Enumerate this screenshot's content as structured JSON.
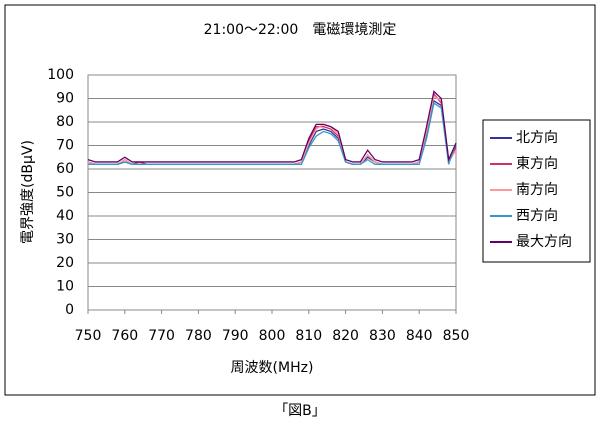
{
  "chart_data": {
    "type": "line",
    "title": "21:00～22:00　電磁環境測定",
    "xlabel": "周波数(MHz)",
    "ylabel": "電界強度(dBμV)",
    "caption": "「図B」",
    "x": [
      750,
      752,
      754,
      756,
      758,
      760,
      762,
      764,
      766,
      768,
      770,
      772,
      774,
      776,
      778,
      780,
      782,
      784,
      786,
      788,
      790,
      792,
      794,
      796,
      798,
      800,
      802,
      804,
      806,
      808,
      810,
      812,
      814,
      816,
      818,
      820,
      822,
      824,
      826,
      828,
      830,
      832,
      834,
      836,
      838,
      840,
      842,
      844,
      846,
      848,
      850
    ],
    "series": [
      {
        "name": "北方向",
        "color": "#333399",
        "values": [
          63,
          62,
          62,
          62,
          62,
          63,
          62,
          62,
          62,
          62,
          62,
          62,
          62,
          62,
          62,
          62,
          62,
          62,
          62,
          62,
          62,
          62,
          62,
          62,
          62,
          62,
          62,
          62,
          62,
          63,
          70,
          76,
          77,
          76,
          73,
          63,
          62,
          62,
          65,
          63,
          62,
          62,
          62,
          62,
          62,
          63,
          75,
          89,
          87,
          63,
          70
        ]
      },
      {
        "name": "東方向",
        "color": "#cc3366",
        "values": [
          63,
          62,
          62,
          62,
          62,
          64,
          62,
          63,
          62,
          62,
          62,
          62,
          62,
          62,
          62,
          62,
          62,
          62,
          62,
          62,
          62,
          62,
          62,
          62,
          62,
          62,
          62,
          62,
          62,
          63,
          72,
          78,
          78,
          77,
          74,
          63,
          62,
          62,
          66,
          63,
          62,
          62,
          62,
          62,
          62,
          63,
          77,
          92,
          88,
          64,
          69
        ]
      },
      {
        "name": "南方向",
        "color": "#ff9999",
        "values": [
          63,
          62,
          62,
          62,
          62,
          64,
          62,
          62,
          62,
          62,
          62,
          62,
          62,
          62,
          62,
          62,
          62,
          62,
          62,
          62,
          62,
          62,
          62,
          62,
          62,
          62,
          62,
          62,
          62,
          63,
          71,
          77,
          79,
          78,
          75,
          63,
          62,
          62,
          66,
          63,
          62,
          62,
          62,
          62,
          62,
          63,
          76,
          91,
          89,
          63,
          68
        ]
      },
      {
        "name": "西方向",
        "color": "#3399cc",
        "values": [
          62,
          62,
          62,
          62,
          62,
          63,
          62,
          62,
          62,
          62,
          62,
          62,
          62,
          62,
          62,
          62,
          62,
          62,
          62,
          62,
          62,
          62,
          62,
          62,
          62,
          62,
          62,
          62,
          62,
          62,
          69,
          74,
          76,
          75,
          72,
          63,
          62,
          62,
          64,
          62,
          62,
          62,
          62,
          62,
          62,
          62,
          73,
          88,
          86,
          62,
          71
        ]
      },
      {
        "name": "最大方向",
        "color": "#660066",
        "values": [
          64,
          63,
          63,
          63,
          63,
          65,
          63,
          63,
          63,
          63,
          63,
          63,
          63,
          63,
          63,
          63,
          63,
          63,
          63,
          63,
          63,
          63,
          63,
          63,
          63,
          63,
          63,
          63,
          63,
          64,
          73,
          79,
          79,
          78,
          76,
          64,
          63,
          63,
          68,
          64,
          63,
          63,
          63,
          63,
          63,
          64,
          78,
          93,
          90,
          64,
          71
        ]
      }
    ],
    "xlim": [
      750,
      850
    ],
    "xticks": [
      750,
      760,
      770,
      780,
      790,
      800,
      810,
      820,
      830,
      840,
      850
    ],
    "ylim": [
      0,
      100
    ],
    "yticks": [
      0,
      10,
      20,
      30,
      40,
      50,
      60,
      70,
      80,
      90,
      100
    ],
    "grid": true,
    "legend": "right"
  }
}
